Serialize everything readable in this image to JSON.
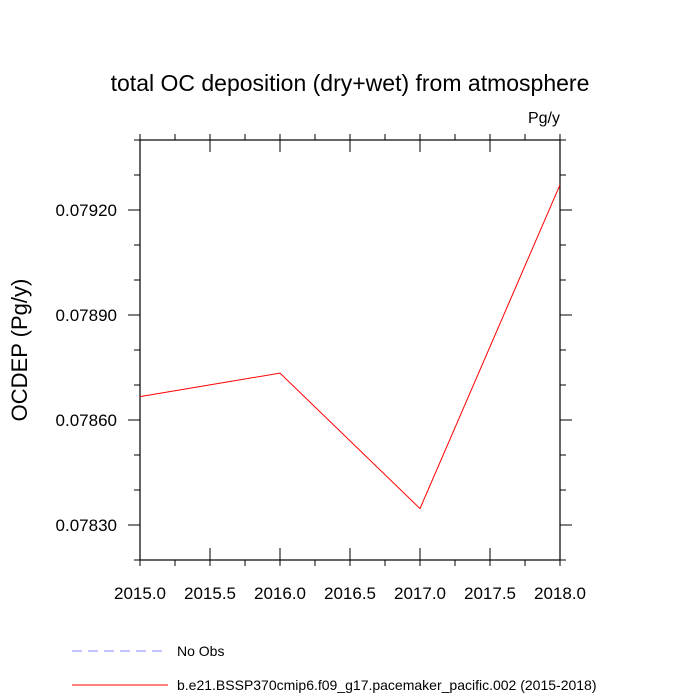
{
  "chart_data": {
    "type": "line",
    "title": "total OC deposition (dry+wet) from atmosphere",
    "units_label": "Pg/y",
    "ylabel": "OCDEP  (Pg/y)",
    "xlabel": "",
    "xlim": [
      2015.0,
      2018.0
    ],
    "ylim": [
      0.0782,
      0.0794
    ],
    "xticks": [
      2015.0,
      2015.5,
      2016.0,
      2016.5,
      2017.0,
      2017.5,
      2018.0
    ],
    "xtick_labels": [
      "2015.0",
      "2015.5",
      "2016.0",
      "2016.5",
      "2017.0",
      "2017.5",
      "2018.0"
    ],
    "yticks": [
      0.0783,
      0.0786,
      0.0789,
      0.0792
    ],
    "ytick_labels": [
      "0.07830",
      "0.07860",
      "0.07890",
      "0.07920"
    ],
    "grid": false,
    "legend_position": "bottom-left",
    "series": [
      {
        "name": "No Obs",
        "color": "#8888ff",
        "dash": "dashed",
        "x": [],
        "y": []
      },
      {
        "name": "b.e21.BSSP370cmip6.f09_g17.pacemaker_pacific.002 (2015-2018)",
        "color": "#ff0000",
        "dash": "solid",
        "x": [
          2015.0,
          2016.0,
          2017.0,
          2018.0
        ],
        "y": [
          0.078667,
          0.078734,
          0.078347,
          0.079272
        ]
      }
    ]
  }
}
